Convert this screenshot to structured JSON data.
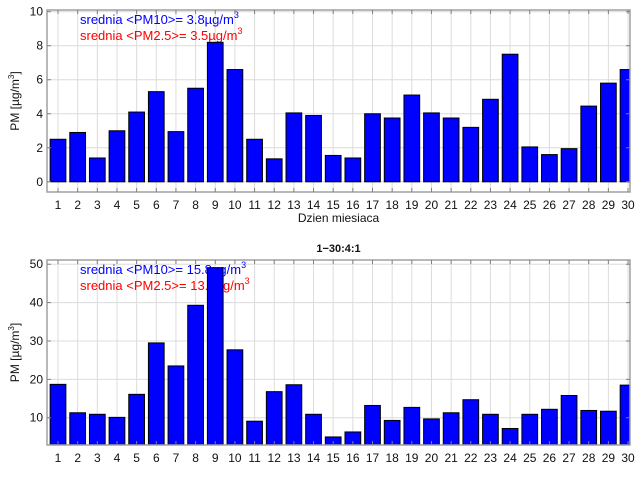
{
  "chart_data": [
    {
      "type": "bar",
      "title": "",
      "xlabel": "Dzien miesiaca",
      "ylabel": "PM [µg/m",
      "ylabel_sup": "3",
      "annotations": [
        {
          "text": "srednia <PM10>= 3.8µg/m",
          "sup": "3",
          "color": "#0000ff"
        },
        {
          "text": "srednia <PM2.5>= 3.5µg/m",
          "sup": "3",
          "color": "#ff0000"
        }
      ],
      "categories": [
        1,
        2,
        3,
        4,
        5,
        6,
        7,
        8,
        9,
        10,
        11,
        12,
        13,
        14,
        15,
        16,
        17,
        18,
        19,
        20,
        21,
        22,
        23,
        24,
        25,
        26,
        27,
        28,
        29,
        30
      ],
      "values": [
        2.5,
        2.9,
        1.4,
        3.0,
        4.1,
        5.3,
        2.95,
        5.5,
        8.2,
        6.6,
        2.5,
        1.35,
        4.05,
        3.9,
        1.55,
        1.4,
        4.0,
        3.75,
        5.1,
        4.05,
        3.75,
        3.2,
        4.85,
        7.5,
        2.05,
        1.6,
        1.95,
        4.45,
        5.8,
        6.6
      ],
      "ylim": [
        -0.6,
        10.1
      ],
      "xlim": [
        0.44,
        30.1
      ],
      "yticks": [
        0,
        2,
        4,
        6,
        8,
        10
      ],
      "grid": true,
      "bar_color": "#0000ff"
    },
    {
      "type": "bar",
      "title": "1−30:4:1",
      "xlabel": "",
      "ylabel": "PM [µg/m",
      "ylabel_sup": "3",
      "annotations": [
        {
          "text": "srednia <PM10>= 15.8µg/m",
          "sup": "3",
          "color": "#0000ff"
        },
        {
          "text": "srednia <PM2.5>= 13.1µg/m",
          "sup": "3",
          "color": "#ff0000"
        }
      ],
      "categories": [
        1,
        2,
        3,
        4,
        5,
        6,
        7,
        8,
        9,
        10,
        11,
        12,
        13,
        14,
        15,
        16,
        17,
        18,
        19,
        20,
        21,
        22,
        23,
        24,
        25,
        26,
        27,
        28,
        29,
        30
      ],
      "values": [
        18.7,
        11.3,
        10.9,
        10.1,
        16.1,
        29.5,
        23.5,
        39.3,
        49.1,
        27.7,
        9.1,
        16.8,
        18.6,
        10.9,
        5.0,
        6.3,
        13.2,
        9.3,
        12.7,
        9.7,
        11.3,
        14.7,
        10.9,
        7.2,
        10.9,
        12.2,
        15.8,
        11.9,
        11.7,
        18.5
      ],
      "ylim": [
        2.9,
        51.1
      ],
      "xlim": [
        0.44,
        30.1
      ],
      "yticks": [
        10,
        20,
        30,
        40,
        50
      ],
      "grid": true,
      "bar_color": "#0000ff"
    }
  ]
}
